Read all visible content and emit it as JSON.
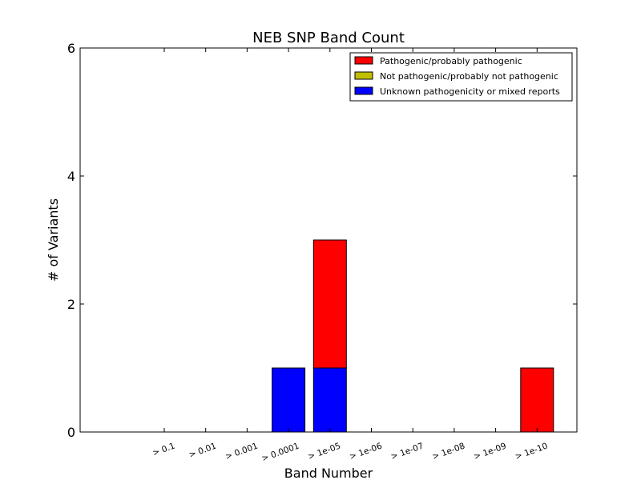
{
  "chart_data": {
    "type": "bar",
    "stacked": true,
    "title": "NEB SNP Band Count",
    "xlabel": "Band Number",
    "ylabel": "# of Variants",
    "categories": [
      "> 0.1",
      "> 0.01",
      "> 0.001",
      "> 0.0001",
      "> 1e-05",
      "> 1e-06",
      "> 1e-07",
      "> 1e-08",
      "> 1e-09",
      "> 1e-10"
    ],
    "series": [
      {
        "name": "Unknown pathogenicity or mixed reports",
        "color": "#0000ff",
        "values": [
          0,
          0,
          0,
          1,
          1,
          0,
          0,
          0,
          0,
          0
        ]
      },
      {
        "name": "Not pathogenic/probably not pathogenic",
        "color": "#bfbf00",
        "values": [
          0,
          0,
          0,
          0,
          0,
          0,
          0,
          0,
          0,
          0
        ]
      },
      {
        "name": "Pathogenic/probably pathogenic",
        "color": "#ff0000",
        "values": [
          0,
          0,
          0,
          0,
          2,
          0,
          0,
          0,
          0,
          1
        ]
      }
    ],
    "legend_order": [
      "Pathogenic/probably pathogenic",
      "Not pathogenic/probably not pathogenic",
      "Unknown pathogenicity or mixed reports"
    ],
    "yticks": [
      "0",
      "2",
      "4",
      "6"
    ],
    "ylim": [
      0,
      6
    ],
    "legend_position": "upper right",
    "grid": false
  }
}
